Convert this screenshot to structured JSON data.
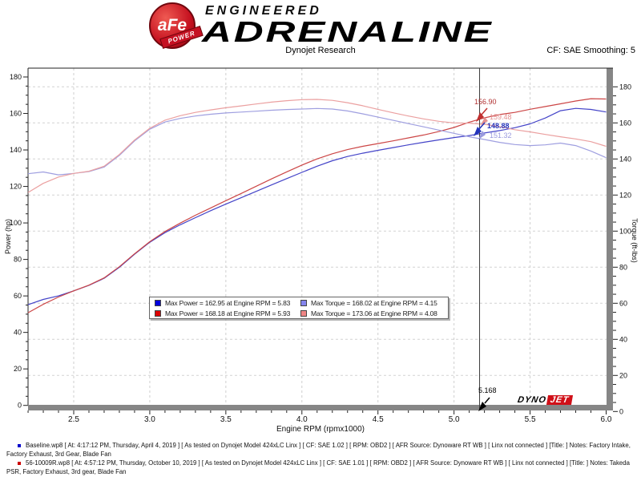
{
  "header": {
    "brand": {
      "badge_text": "aFe",
      "badge_sub": "POWER",
      "line1": "ENGINEERED",
      "line2": "ADRENALINE",
      "badge_color": "#c40f1e"
    },
    "title": "Dynojet Research",
    "smoothing": "CF: SAE Smoothing: 5"
  },
  "chart_data": {
    "type": "line",
    "x_axis": {
      "label": "Engine RPM (rpmx1000)",
      "min": 2.2,
      "max": 6.0,
      "major_ticks": [
        2.5,
        3.0,
        3.5,
        4.0,
        4.5,
        5.0,
        5.5,
        6.0
      ],
      "minor_step": 0.1,
      "grid": true
    },
    "y_left": {
      "label": "Power (hp)",
      "min": 0,
      "max": 180,
      "major_ticks": [
        0,
        20,
        40,
        60,
        80,
        100,
        120,
        140,
        160,
        180
      ],
      "minor_step": 5
    },
    "y_right": {
      "label": "Torque (ft-lbs)",
      "min": 0,
      "max": 180,
      "major_ticks": [
        0,
        20,
        40,
        60,
        80,
        100,
        120,
        140,
        160,
        180
      ],
      "minor_step": 5,
      "grid": true
    },
    "x": [
      2.2,
      2.3,
      2.4,
      2.5,
      2.6,
      2.7,
      2.8,
      2.9,
      3.0,
      3.1,
      3.2,
      3.3,
      3.4,
      3.5,
      3.6,
      3.7,
      3.8,
      3.9,
      4.0,
      4.1,
      4.2,
      4.3,
      4.4,
      4.5,
      4.6,
      4.7,
      4.8,
      4.9,
      5.0,
      5.1,
      5.2,
      5.3,
      5.4,
      5.5,
      5.6,
      5.7,
      5.8,
      5.9,
      6.0
    ],
    "series": [
      {
        "name": "Baseline Power (hp)",
        "axis": "left",
        "color": "#4444c8",
        "values": [
          55.2,
          58.1,
          60.0,
          62.8,
          65.8,
          69.7,
          75.7,
          82.8,
          89.4,
          94.7,
          99.0,
          102.9,
          106.7,
          110.3,
          113.8,
          117.3,
          120.8,
          124.3,
          127.7,
          131.1,
          134.1,
          136.4,
          138.2,
          139.8,
          141.3,
          142.8,
          144.2,
          145.5,
          146.8,
          147.9,
          149.3,
          150.6,
          152.2,
          154.3,
          157.5,
          161.5,
          162.8,
          162.2,
          160.8
        ]
      },
      {
        "name": "56-10009R Power (hp)",
        "axis": "left",
        "color": "#cc4646",
        "values": [
          50.8,
          55.4,
          59.4,
          62.8,
          65.9,
          69.9,
          76.0,
          83.1,
          89.7,
          95.3,
          99.9,
          104.2,
          108.2,
          112.2,
          116.1,
          120.1,
          124.1,
          128.0,
          131.7,
          135.1,
          137.9,
          140.2,
          142.0,
          143.5,
          145.0,
          146.6,
          148.2,
          150.1,
          152.3,
          155.2,
          157.6,
          159.4,
          160.6,
          162.3,
          163.8,
          165.3,
          166.8,
          168.1,
          167.9
        ]
      },
      {
        "name": "Baseline Torque (ft-lbs)",
        "axis": "right",
        "color": "#9f9fe0",
        "values": [
          131.8,
          132.8,
          131.2,
          132.0,
          133.0,
          135.5,
          142.0,
          150.0,
          156.5,
          160.5,
          162.5,
          163.8,
          164.8,
          165.5,
          166.0,
          166.5,
          167.0,
          167.4,
          167.7,
          168.0,
          167.7,
          166.6,
          165.0,
          163.2,
          161.4,
          159.6,
          157.8,
          156.0,
          154.2,
          152.3,
          150.8,
          149.2,
          148.0,
          147.4,
          147.8,
          148.8,
          147.4,
          144.4,
          140.7
        ]
      },
      {
        "name": "56-10009R Torque (ft-lbs)",
        "axis": "right",
        "color": "#eba0a0",
        "values": [
          121.4,
          126.5,
          130.0,
          132.0,
          133.2,
          136.0,
          142.5,
          150.5,
          157.0,
          161.5,
          164.0,
          165.8,
          167.2,
          168.4,
          169.4,
          170.5,
          171.5,
          172.3,
          172.9,
          173.0,
          172.5,
          171.2,
          169.5,
          167.5,
          165.6,
          163.8,
          162.2,
          160.9,
          160.0,
          159.8,
          159.2,
          158.0,
          156.2,
          155.0,
          153.6,
          152.3,
          151.1,
          149.6,
          147.0
        ]
      }
    ],
    "legend": {
      "rows": [
        {
          "power_swatch": "#0000dd",
          "power": "Max Power = 162.95 at Engine RPM = 5.83",
          "torque_swatch": "#8585ee",
          "torque": "Max Torque = 168.02 at Engine RPM = 4.15"
        },
        {
          "power_swatch": "#dd0000",
          "power": "Max Power = 168.18 at Engine RPM = 5.93",
          "torque_swatch": "#ee8585",
          "torque": "Max Torque = 173.06 at Engine RPM = 4.08"
        }
      ]
    }
  },
  "cursor": {
    "rpm": 5.168,
    "rpm_label": "5.168",
    "readouts": [
      {
        "label": "156.90",
        "color": "#b03030"
      },
      {
        "label": "159.48",
        "color": "#e39090"
      },
      {
        "label": "148.88",
        "color": "#2233bb"
      },
      {
        "label": "151.32",
        "color": "#9a9ade"
      }
    ]
  },
  "watermark": {
    "part1": "DYNO",
    "part2": "JET"
  },
  "footer": {
    "runs": [
      {
        "bullet_color": "#0000cc",
        "text": "Baseline.wp8 [ At: 4:17:12 PM, Thursday, April 4, 2019 ] [ As tested on Dynojet Model 424xLC Linx ] [ CF: SAE 1.02 ] [ RPM: OBD2 ] [ AFR Source: Dynoware RT WB ] [ Linx not connected ] [Title: ]  Notes: Factory Intake, Factory Exhaust, 3rd Gear, Blade Fan"
      },
      {
        "bullet_color": "#cc0000",
        "text": "56-10009R.wp8 [ At: 4:57:12 PM, Thursday, October 10, 2019 ] [ As tested on Dynojet Model 424xLC Linx ] [ CF: SAE 1.01 ] [ RPM: OBD2 ] [ AFR Source: Dynoware RT WB ] [ Linx not connected ] [Title: ]  Notes: Takeda PSR, Factory Exhaust, 3rd gear, Blade Fan"
      }
    ]
  }
}
